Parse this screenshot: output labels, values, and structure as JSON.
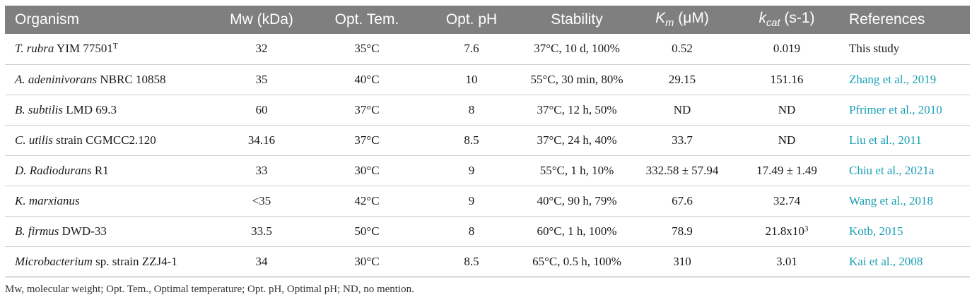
{
  "header": {
    "organism": "Organism",
    "mw": "Mw (kDa)",
    "opt_tem": "Opt. Tem.",
    "opt_ph": "Opt. pH",
    "stability": "Stability",
    "km_base": "K",
    "km_sub": "m",
    "km_unit": " (μM)",
    "kcat_base": "k",
    "kcat_sub": "cat",
    "kcat_unit": " (s-1)",
    "references": "References"
  },
  "rows": [
    {
      "org_italic": "T. rubra",
      "org_rest": " YIM 77501",
      "org_sup": "T",
      "mw": "32",
      "temp": "35°C",
      "ph": "7.6",
      "stability": "37°C, 10 d, 100%",
      "km": "0.52",
      "kcat": "0.019",
      "kcat_sup": "",
      "ref": "This study"
    },
    {
      "org_italic": "A. adeninivorans",
      "org_rest": " NBRC 10858",
      "org_sup": "",
      "mw": "35",
      "temp": "40°C",
      "ph": "10",
      "stability": "55°C, 30 min, 80%",
      "km": "29.15",
      "kcat": "151.16",
      "kcat_sup": "",
      "ref": "Zhang et al., 2019"
    },
    {
      "org_italic": "B. subtilis",
      "org_rest": " LMD 69.3",
      "org_sup": "",
      "mw": "60",
      "temp": "37°C",
      "ph": "8",
      "stability": "37°C, 12 h, 50%",
      "km": "ND",
      "kcat": "ND",
      "kcat_sup": "",
      "ref": "Pfrimer et al., 2010"
    },
    {
      "org_italic": "C. utilis",
      "org_rest": " strain CGMCC2.120",
      "org_sup": "",
      "mw": "34.16",
      "temp": "37°C",
      "ph": "8.5",
      "stability": "37°C, 24 h, 40%",
      "km": "33.7",
      "kcat": "ND",
      "kcat_sup": "",
      "ref": "Liu et al., 2011"
    },
    {
      "org_italic": "D. Radiodurans",
      "org_rest": " R1",
      "org_sup": "",
      "mw": "33",
      "temp": "30°C",
      "ph": "9",
      "stability": "55°C, 1 h, 10%",
      "km": "332.58 ± 57.94",
      "kcat": "17.49 ± 1.49",
      "kcat_sup": "",
      "ref": "Chiu et al., 2021a"
    },
    {
      "org_italic": "K. marxianus",
      "org_rest": "",
      "org_sup": "",
      "mw": "<35",
      "temp": "42°C",
      "ph": "9",
      "stability": "40°C, 90 h, 79%",
      "km": "67.6",
      "kcat": "32.74",
      "kcat_sup": "",
      "ref": "Wang et al., 2018"
    },
    {
      "org_italic": "B. firmus",
      "org_rest": " DWD-33",
      "org_sup": "",
      "mw": "33.5",
      "temp": "50°C",
      "ph": "8",
      "stability": "60°C, 1 h, 100%",
      "km": "78.9",
      "kcat": "21.8x10",
      "kcat_sup": "3",
      "ref": "Kotb, 2015"
    },
    {
      "org_italic": "Microbacterium",
      "org_rest": " sp. strain ZZJ4-1",
      "org_sup": "",
      "mw": "34",
      "temp": "30°C",
      "ph": "8.5",
      "stability": "65°C, 0.5 h, 100%",
      "km": "310",
      "kcat": "3.01",
      "kcat_sup": "",
      "ref": "Kai et al., 2008"
    }
  ],
  "footnote": "Mw, molecular weight; Opt. Tem., Optimal temperature; Opt. pH, Optimal pH; ND, no mention.",
  "colors": {
    "header_bg": "#7f7f7f",
    "link": "#1a9fb5"
  }
}
